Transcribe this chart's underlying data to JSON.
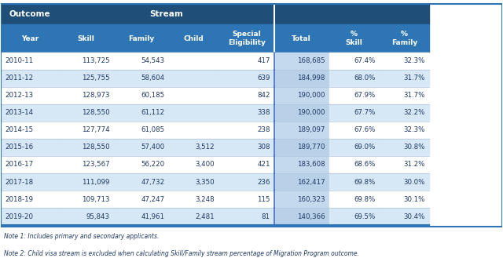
{
  "title_row1": [
    "Outcome",
    "Stream",
    "",
    "",
    "",
    "",
    "",
    ""
  ],
  "header_row2": [
    "Year",
    "Skill",
    "Family",
    "Child",
    "Special\nEligibility",
    "Total",
    "%\nSkill",
    "%\nFamily"
  ],
  "rows": [
    [
      "2010-11",
      "113,725",
      "54,543",
      "",
      "417",
      "168,685",
      "67.4%",
      "32.3%"
    ],
    [
      "2011-12",
      "125,755",
      "58,604",
      "",
      "639",
      "184,998",
      "68.0%",
      "31.7%"
    ],
    [
      "2012-13",
      "128,973",
      "60,185",
      "",
      "842",
      "190,000",
      "67.9%",
      "31.7%"
    ],
    [
      "2013-14",
      "128,550",
      "61,112",
      "",
      "338",
      "190,000",
      "67.7%",
      "32.2%"
    ],
    [
      "2014-15",
      "127,774",
      "61,085",
      "",
      "238",
      "189,097",
      "67.6%",
      "32.3%"
    ],
    [
      "2015-16",
      "128,550",
      "57,400",
      "3,512",
      "308",
      "189,770",
      "69.0%",
      "30.8%"
    ],
    [
      "2016-17",
      "123,567",
      "56,220",
      "3,400",
      "421",
      "183,608",
      "68.6%",
      "31.2%"
    ],
    [
      "2017-18",
      "111,099",
      "47,732",
      "3,350",
      "236",
      "162,417",
      "69.8%",
      "30.0%"
    ],
    [
      "2018-19",
      "109,713",
      "47,247",
      "3,248",
      "115",
      "160,323",
      "69.8%",
      "30.1%"
    ],
    [
      "2019-20",
      "95,843",
      "41,961",
      "2,481",
      "81",
      "140,366",
      "69.5%",
      "30.4%"
    ]
  ],
  "note1": "Note 1: Includes primary and secondary applicants.",
  "note2": "Note 2: Child visa stream is excluded when calculating Skill/Family stream percentage of Migration Program outcome.",
  "header_bg": "#1F4E79",
  "header_text": "#FFFFFF",
  "subheader_bg": "#2E75B6",
  "subheader_text": "#FFFFFF",
  "row_even_bg": "#FFFFFF",
  "row_odd_bg": "#DDEEFF",
  "data_text": "#1F3864",
  "total_col_bg": "#D9E8F5",
  "divider_col": "#4472C4",
  "border_color": "#B0C4DE"
}
